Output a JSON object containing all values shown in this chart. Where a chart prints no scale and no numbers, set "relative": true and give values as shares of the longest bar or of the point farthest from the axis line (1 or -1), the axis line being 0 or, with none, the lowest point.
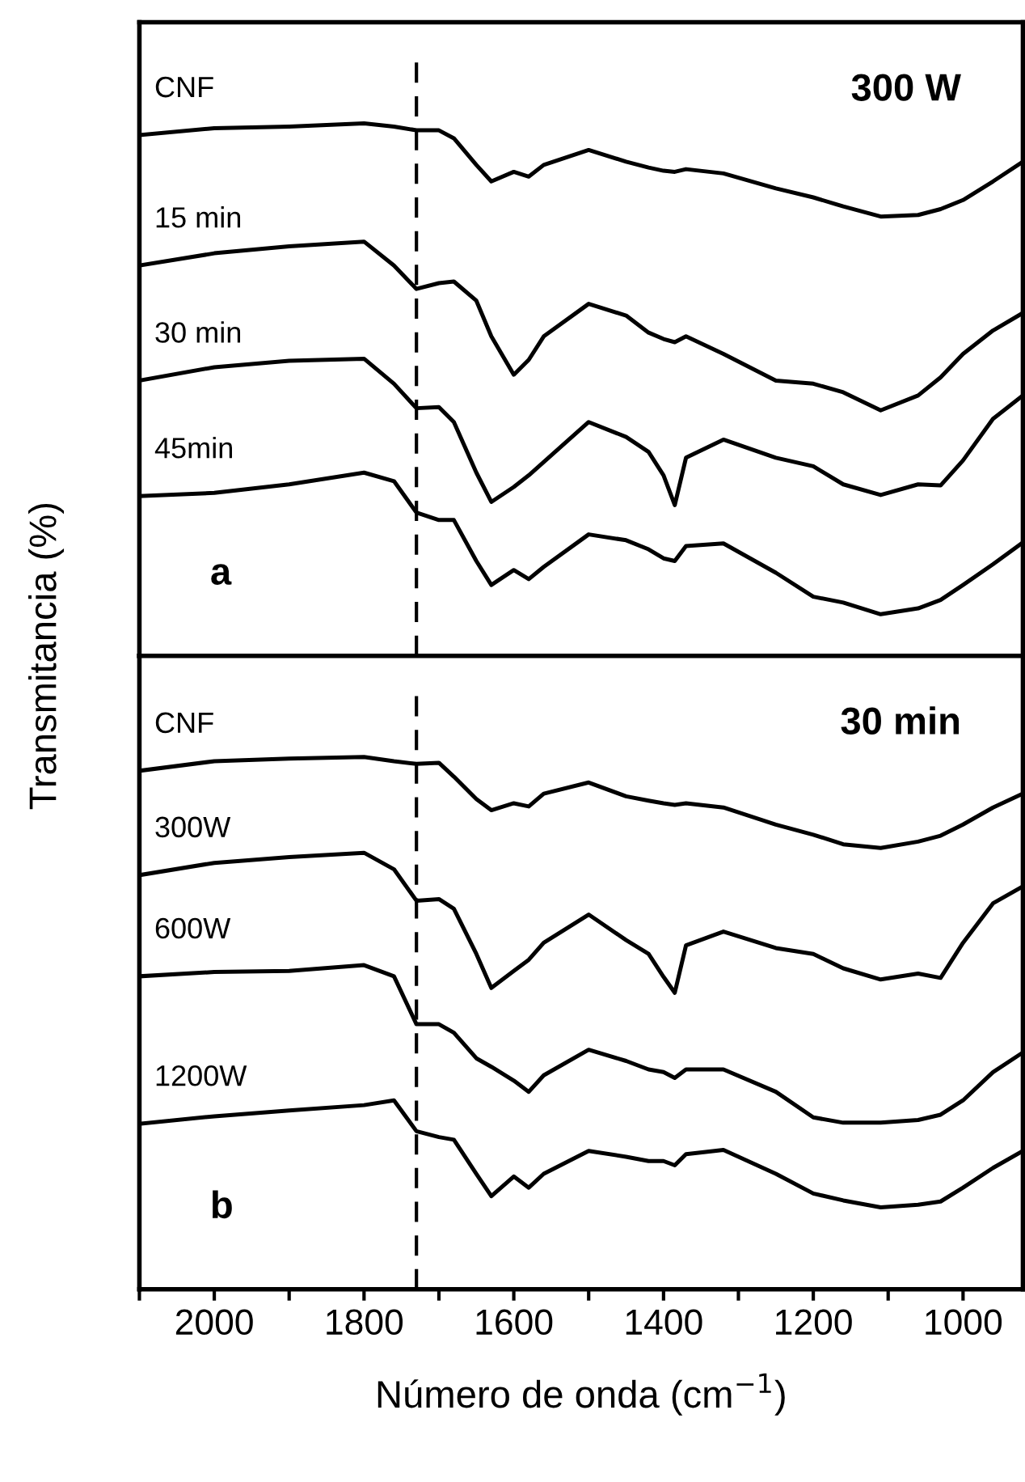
{
  "chart_data": [
    {
      "type": "line",
      "relative": true,
      "tick_labels": false,
      "xlim": [
        2100,
        920
      ],
      "ylabel": "Transmitancia (%)",
      "annotations": [
        "300 W",
        "a"
      ],
      "ref_lines": [
        {
          "axis": "x",
          "value": 1730,
          "color": "#000000",
          "line_style": "dashed"
        }
      ],
      "marker": "none",
      "line_style": "solid",
      "grid": false,
      "legend": false,
      "x": [
        2100,
        2000,
        1900,
        1800,
        1760,
        1730,
        1700,
        1680,
        1650,
        1630,
        1600,
        1580,
        1560,
        1500,
        1450,
        1420,
        1400,
        1385,
        1370,
        1320,
        1250,
        1200,
        1160,
        1110,
        1060,
        1030,
        1000,
        960,
        920
      ],
      "series": [
        {
          "name": "CNF",
          "color": "#000000",
          "values": [
            0.978,
            0.991,
            0.994,
            1.0,
            0.994,
            0.987,
            0.987,
            0.972,
            0.922,
            0.891,
            0.909,
            0.9,
            0.922,
            0.95,
            0.928,
            0.917,
            0.911,
            0.909,
            0.914,
            0.906,
            0.878,
            0.861,
            0.844,
            0.825,
            0.828,
            0.839,
            0.856,
            0.891,
            0.928
          ]
        },
        {
          "name": "15 min",
          "color": "#000000",
          "values": [
            0.733,
            0.756,
            0.769,
            0.778,
            0.733,
            0.689,
            0.7,
            0.703,
            0.667,
            0.6,
            0.528,
            0.556,
            0.6,
            0.661,
            0.639,
            0.607,
            0.595,
            0.589,
            0.6,
            0.567,
            0.517,
            0.511,
            0.495,
            0.461,
            0.489,
            0.523,
            0.567,
            0.611,
            0.644
          ]
        },
        {
          "name": "30 min",
          "color": "#000000",
          "values": [
            0.517,
            0.542,
            0.554,
            0.558,
            0.511,
            0.465,
            0.467,
            0.439,
            0.344,
            0.289,
            0.317,
            0.339,
            0.364,
            0.439,
            0.411,
            0.383,
            0.339,
            0.283,
            0.372,
            0.406,
            0.372,
            0.356,
            0.322,
            0.302,
            0.322,
            0.32,
            0.367,
            0.445,
            0.489
          ]
        },
        {
          "name": "45min",
          "color": "#000000",
          "values": [
            0.3,
            0.306,
            0.322,
            0.344,
            0.328,
            0.269,
            0.255,
            0.255,
            0.178,
            0.133,
            0.161,
            0.144,
            0.167,
            0.228,
            0.217,
            0.2,
            0.183,
            0.178,
            0.206,
            0.211,
            0.156,
            0.111,
            0.1,
            0.078,
            0.089,
            0.105,
            0.133,
            0.172,
            0.213
          ]
        }
      ]
    },
    {
      "type": "line",
      "relative": true,
      "tick_labels": "x",
      "xlim": [
        2100,
        920
      ],
      "xticks": [
        {
          "value": 2100,
          "label": null
        },
        2000,
        {
          "value": 1900,
          "label": null
        },
        1800,
        {
          "value": 1700,
          "label": null
        },
        1600,
        {
          "value": 1500,
          "label": null
        },
        1400,
        {
          "value": 1300,
          "label": null
        },
        1200,
        {
          "value": 1100,
          "label": null
        },
        1000
      ],
      "xlabel": "Número de onda (cm$^{−1}$)",
      "annotations": [
        "30 min",
        "b"
      ],
      "ref_lines": [
        {
          "axis": "x",
          "value": 1730,
          "color": "#000000",
          "line_style": "dashed"
        }
      ],
      "marker": "none",
      "line_style": "solid",
      "grid": false,
      "legend": false,
      "x": [
        2100,
        2000,
        1900,
        1800,
        1760,
        1730,
        1700,
        1680,
        1650,
        1630,
        1600,
        1580,
        1560,
        1500,
        1450,
        1420,
        1400,
        1385,
        1370,
        1320,
        1250,
        1200,
        1160,
        1110,
        1060,
        1030,
        1000,
        960,
        920
      ],
      "series": [
        {
          "name": "CNF",
          "color": "#000000",
          "values": [
            0.974,
            0.992,
            0.997,
            1.0,
            0.992,
            0.987,
            0.989,
            0.963,
            0.921,
            0.9,
            0.913,
            0.907,
            0.931,
            0.952,
            0.926,
            0.918,
            0.913,
            0.91,
            0.913,
            0.905,
            0.873,
            0.854,
            0.836,
            0.829,
            0.841,
            0.852,
            0.873,
            0.905,
            0.931
          ]
        },
        {
          "name": "300W",
          "color": "#000000",
          "values": [
            0.778,
            0.801,
            0.812,
            0.82,
            0.789,
            0.73,
            0.733,
            0.715,
            0.63,
            0.566,
            0.598,
            0.619,
            0.651,
            0.704,
            0.656,
            0.63,
            0.587,
            0.557,
            0.646,
            0.672,
            0.641,
            0.63,
            0.603,
            0.582,
            0.593,
            0.585,
            0.651,
            0.725,
            0.757
          ]
        },
        {
          "name": "600W",
          "color": "#000000",
          "values": [
            0.588,
            0.596,
            0.598,
            0.609,
            0.588,
            0.498,
            0.498,
            0.482,
            0.434,
            0.418,
            0.392,
            0.371,
            0.402,
            0.45,
            0.429,
            0.413,
            0.408,
            0.397,
            0.413,
            0.413,
            0.371,
            0.323,
            0.313,
            0.313,
            0.318,
            0.328,
            0.355,
            0.408,
            0.445
          ]
        },
        {
          "name": "1200W",
          "color": "#000000",
          "values": [
            0.311,
            0.325,
            0.336,
            0.346,
            0.355,
            0.297,
            0.286,
            0.281,
            0.217,
            0.175,
            0.212,
            0.191,
            0.217,
            0.26,
            0.249,
            0.241,
            0.241,
            0.233,
            0.254,
            0.262,
            0.217,
            0.18,
            0.167,
            0.154,
            0.159,
            0.165,
            0.191,
            0.228,
            0.26
          ]
        }
      ]
    }
  ]
}
